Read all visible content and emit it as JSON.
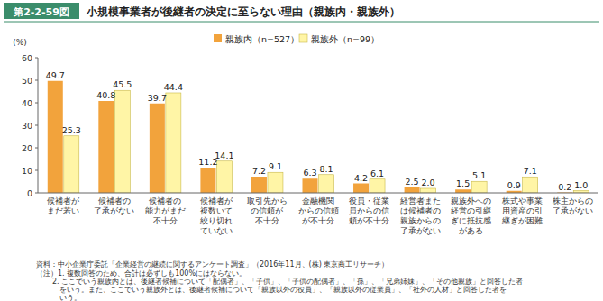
{
  "chart_data": {
    "type": "bar",
    "figure_number": "第2-2-59図",
    "title": "小規模事業者が後継者の決定に至らない理由（親族内・親族外）",
    "y_label": "(%)",
    "categories": [
      "候補者が\nまだ若い",
      "候補者の\n了承がない",
      "候補者の\n能力がまだ\n不十分",
      "候補者が\n複数いて\n絞り切れ\nていない",
      "取引先から\nの信頼が\n不十分",
      "金融機関\nからの信頼\nが不十分",
      "役員・従業\n員からの信\n頼が不十分",
      "経営者また\nは候補者の\n親族からの\n了承がない",
      "親族外への\n経営の引継\nぎに抵抗感\nがある",
      "株式や事業\n用資産の引\n継ぎが困難",
      "株主からの\n了承がない"
    ],
    "series": [
      {
        "name": "親族内（n=527）",
        "color": "#f2a33c",
        "values": [
          49.7,
          40.8,
          39.7,
          11.2,
          7.2,
          6.3,
          4.2,
          2.5,
          1.5,
          0.9,
          0.2
        ]
      },
      {
        "name": "親族外（n=99）",
        "color": "#fff5a6",
        "values": [
          25.3,
          45.5,
          44.4,
          14.1,
          9.1,
          8.1,
          6.1,
          2.0,
          5.1,
          7.1,
          1.0
        ],
        "value_labels": [
          "25.3",
          "45.5",
          "44.4",
          "14.1",
          "9.1",
          "8.1",
          "6.1",
          "2.0",
          "5.1",
          "7.1",
          "1.0"
        ]
      }
    ],
    "ylim": [
      0,
      60
    ],
    "yticks": [
      0,
      10,
      20,
      30,
      40,
      50,
      60
    ],
    "grid": false,
    "legend": "top",
    "data_labels": true,
    "source": "資料：中小企業庁委託「企業経営の継続に関するアンケート調査」（2016年11月、(株) 東京商工リサーチ）",
    "notes": [
      "（注）1. 複数回答のため、合計は必ずしも100%にはならない。",
      "2. ここでいう親族内とは、後継者候補について「配偶者」、「子供」、「子供の配偶者」、「孫」、「兄弟姉妹」、「その他親族」と回答した者",
      "をいう。また、ここでいう親族外とは、後継者候補について「親族以外の役員」、「親族以外の従業員」、「社外の人材」と回答した者を",
      "いう。"
    ]
  }
}
